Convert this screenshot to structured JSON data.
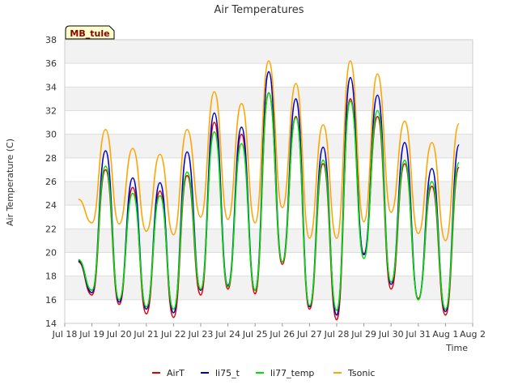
{
  "chart_data": {
    "type": "line",
    "title": "Air Temperatures",
    "xlabel": "Time",
    "ylabel": "Air Temperature (C)",
    "station_label": "MB_tule",
    "ylim": [
      14,
      38
    ],
    "yticks": [
      14,
      16,
      18,
      20,
      22,
      24,
      26,
      28,
      30,
      32,
      34,
      36,
      38
    ],
    "xlim": [
      "Jul 18",
      "Aug 2"
    ],
    "xtick_labels": [
      "Jul 18",
      "Jul 19",
      "Jul 20",
      "Jul 21",
      "Jul 22",
      "Jul 23",
      "Jul 24",
      "Jul 25",
      "Jul 26",
      "Jul 27",
      "Jul 28",
      "Jul 29",
      "Jul 30",
      "Jul 31",
      "Aug 1",
      "Aug 2"
    ],
    "grid": true,
    "legend_position": "bottom",
    "x": [
      "Jul 18 12:00",
      "Jul 19 00:00",
      "Jul 19 12:00",
      "Jul 20 00:00",
      "Jul 20 12:00",
      "Jul 21 00:00",
      "Jul 21 12:00",
      "Jul 22 00:00",
      "Jul 22 12:00",
      "Jul 23 00:00",
      "Jul 23 12:00",
      "Jul 24 00:00",
      "Jul 24 12:00",
      "Jul 25 00:00",
      "Jul 25 12:00",
      "Jul 26 00:00",
      "Jul 26 12:00",
      "Jul 27 00:00",
      "Jul 27 12:00",
      "Jul 28 00:00",
      "Jul 28 12:00",
      "Jul 29 00:00",
      "Jul 29 12:00",
      "Jul 30 00:00",
      "Jul 30 12:00",
      "Jul 31 00:00",
      "Jul 31 12:00",
      "Aug 1 00:00",
      "Aug 1 12:00"
    ],
    "series": [
      {
        "name": "AirT",
        "color": "#dd0000",
        "values": [
          19.2,
          16.4,
          27.0,
          15.6,
          25.5,
          14.8,
          25.2,
          14.5,
          26.5,
          16.4,
          31.0,
          16.9,
          30.0,
          16.5,
          33.5,
          19.0,
          31.5,
          15.2,
          27.5,
          14.3,
          33.0,
          19.9,
          31.5,
          16.9,
          27.5,
          16.1,
          25.6,
          14.7,
          27.2
        ]
      },
      {
        "name": "li75_t",
        "color": "#0000cc",
        "values": [
          19.3,
          16.6,
          28.6,
          15.8,
          26.3,
          15.2,
          25.9,
          14.9,
          28.5,
          16.8,
          31.8,
          17.2,
          30.6,
          16.8,
          35.3,
          19.2,
          33.0,
          15.4,
          28.9,
          14.7,
          34.8,
          19.8,
          33.3,
          17.3,
          29.3,
          16.0,
          27.1,
          15.0,
          29.1
        ]
      },
      {
        "name": "li77_temp",
        "color": "#00dd00",
        "values": [
          19.4,
          16.8,
          27.3,
          16.0,
          25.0,
          15.4,
          24.8,
          15.2,
          26.8,
          16.9,
          30.2,
          17.1,
          29.2,
          16.8,
          33.5,
          19.2,
          31.4,
          15.5,
          27.8,
          15.1,
          32.8,
          19.5,
          32.0,
          17.5,
          27.8,
          16.0,
          26.0,
          15.2,
          27.6
        ]
      },
      {
        "name": "Tsonic",
        "color": "#ffa500",
        "values": [
          24.5,
          22.5,
          30.4,
          22.4,
          28.8,
          21.8,
          28.3,
          21.5,
          30.4,
          23.0,
          33.6,
          22.8,
          32.6,
          22.5,
          36.2,
          23.8,
          34.3,
          21.2,
          30.8,
          21.2,
          36.2,
          22.6,
          35.1,
          23.4,
          31.1,
          21.6,
          29.3,
          21.0,
          30.9
        ]
      }
    ]
  }
}
